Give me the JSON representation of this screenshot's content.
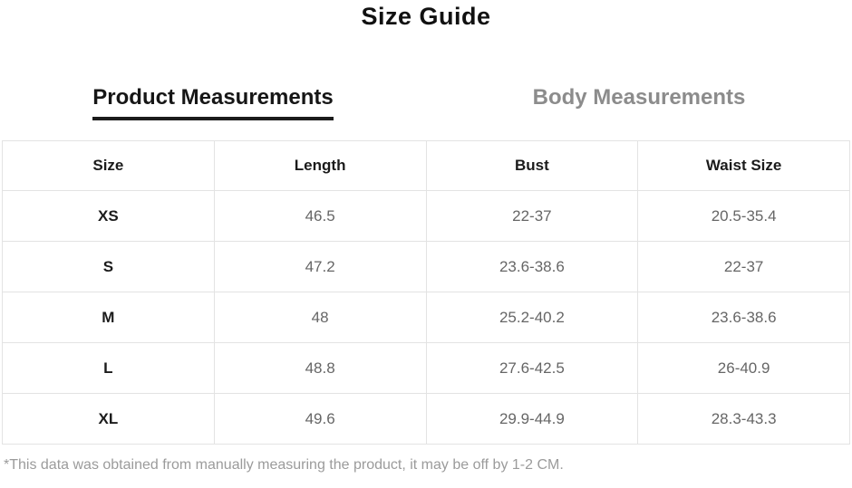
{
  "page": {
    "title": "Size Guide",
    "footnote": "*This data was obtained from manually measuring the product, it may be off by 1-2 CM."
  },
  "tabs": {
    "product": {
      "label": "Product Measurements",
      "active": true
    },
    "body": {
      "label": "Body Measurements",
      "active": false
    }
  },
  "table": {
    "headers": [
      "Size",
      "Length",
      "Bust",
      "Waist Size"
    ],
    "rows": [
      {
        "size": "XS",
        "length": "46.5",
        "bust": "22-37",
        "waist": "20.5-35.4"
      },
      {
        "size": "S",
        "length": "47.2",
        "bust": "23.6-38.6",
        "waist": "22-37"
      },
      {
        "size": "M",
        "length": "48",
        "bust": "25.2-40.2",
        "waist": "23.6-38.6"
      },
      {
        "size": "L",
        "length": "48.8",
        "bust": "27.6-42.5",
        "waist": "26-40.9"
      },
      {
        "size": "XL",
        "length": "49.6",
        "bust": "29.9-44.9",
        "waist": "28.3-43.3"
      }
    ]
  },
  "colors": {
    "active_tab_text": "#161616",
    "active_tab_underline": "#1c1c1c",
    "inactive_tab_text": "#8c8c8c",
    "header_text": "#1b1b1b",
    "cell_text": "#666666",
    "table_border": "#e3e3e3",
    "footnote_text": "#9b9b9b",
    "background": "#ffffff"
  }
}
